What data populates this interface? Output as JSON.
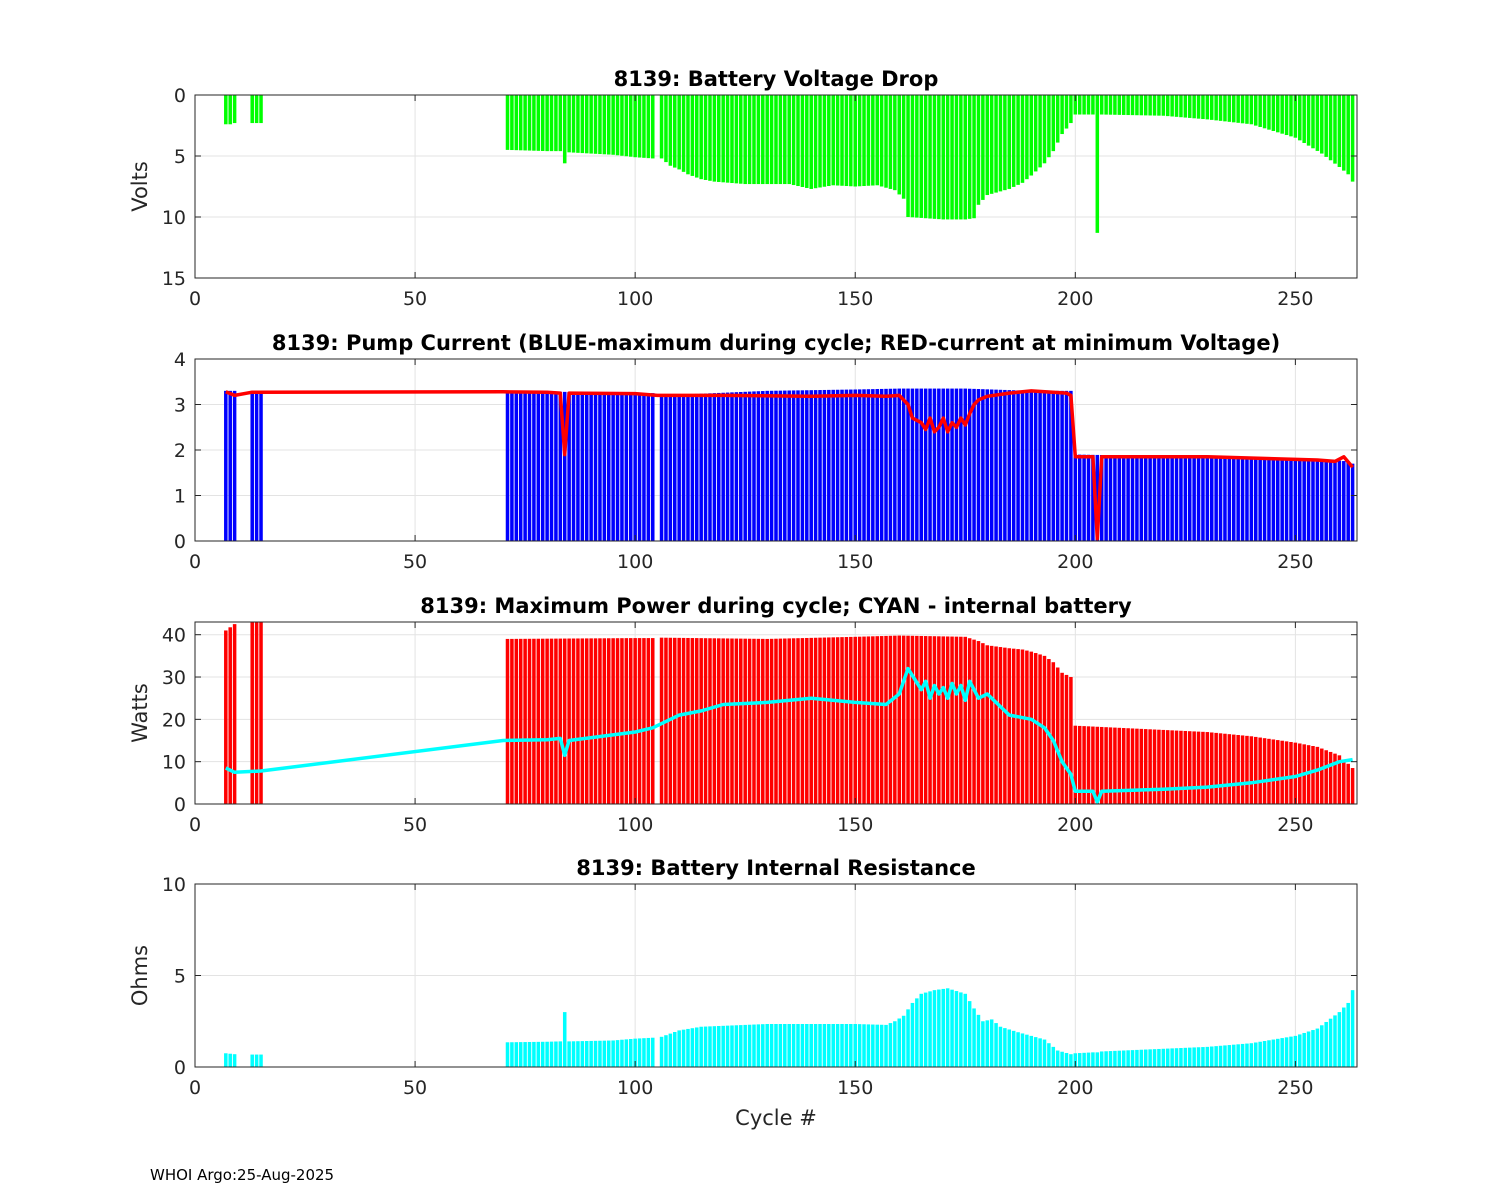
{
  "footer": "WHOI Argo:25-Aug-2025",
  "chart_data": [
    {
      "type": "bar",
      "title": "8139: Battery Voltage Drop",
      "xlabel": "",
      "ylabel": "Volts",
      "xlim": [
        0,
        264
      ],
      "ylim": [
        0,
        15
      ],
      "y_reversed": true,
      "xticks": [
        "0",
        "50",
        "100",
        "150",
        "200",
        "250"
      ],
      "yticks": [
        "0",
        "5",
        "10",
        "15"
      ],
      "grid": true,
      "colors": {
        "bars": "#00ff00"
      },
      "knots": [
        [
          7,
          2.4
        ],
        [
          8,
          2.4
        ],
        [
          9,
          2.3
        ],
        [
          13,
          2.3
        ],
        [
          15,
          2.3
        ],
        [
          71,
          4.5
        ],
        [
          80,
          4.6
        ],
        [
          83,
          4.6
        ],
        [
          84,
          5.6
        ],
        [
          85,
          4.7
        ],
        [
          95,
          4.9
        ],
        [
          100,
          5.1
        ],
        [
          104,
          5.2
        ],
        [
          106,
          5.2
        ],
        [
          108,
          5.8
        ],
        [
          110,
          6.1
        ],
        [
          112,
          6.5
        ],
        [
          115,
          6.9
        ],
        [
          118,
          7.1
        ],
        [
          125,
          7.3
        ],
        [
          135,
          7.3
        ],
        [
          140,
          7.7
        ],
        [
          145,
          7.4
        ],
        [
          150,
          7.5
        ],
        [
          155,
          7.4
        ],
        [
          159,
          7.8
        ],
        [
          161,
          8.5
        ],
        [
          162,
          10.0
        ],
        [
          170,
          10.2
        ],
        [
          175,
          10.2
        ],
        [
          177,
          10.1
        ],
        [
          178,
          9.0
        ],
        [
          180,
          8.2
        ],
        [
          185,
          7.7
        ],
        [
          188,
          7.2
        ],
        [
          190,
          6.6
        ],
        [
          193,
          5.6
        ],
        [
          195,
          4.6
        ],
        [
          197,
          3.2
        ],
        [
          199,
          2.3
        ],
        [
          200,
          1.6
        ],
        [
          204,
          1.6
        ],
        [
          205,
          11.3
        ],
        [
          206,
          1.6
        ],
        [
          220,
          1.7
        ],
        [
          230,
          2.0
        ],
        [
          240,
          2.4
        ],
        [
          250,
          3.5
        ],
        [
          256,
          4.8
        ],
        [
          260,
          5.9
        ],
        [
          262,
          6.5
        ],
        [
          263,
          7.1
        ]
      ],
      "gaps": [
        [
          10,
          12
        ],
        [
          16,
          70
        ],
        [
          105,
          105
        ]
      ]
    },
    {
      "type": "bar+line",
      "title": "8139: Pump Current (BLUE-maximum during cycle; RED-current at minimum Voltage)",
      "xlabel": "",
      "ylabel": "",
      "xlim": [
        0,
        264
      ],
      "ylim": [
        0,
        4
      ],
      "xticks": [
        "0",
        "50",
        "100",
        "150",
        "200",
        "250"
      ],
      "yticks": [
        "0",
        "1",
        "2",
        "3",
        "4"
      ],
      "grid": true,
      "colors": {
        "bars": "#0000ff",
        "line": "#ff0000"
      },
      "bar_knots": [
        [
          7,
          3.3
        ],
        [
          15,
          3.3
        ],
        [
          71,
          3.3
        ],
        [
          100,
          3.25
        ],
        [
          104,
          3.25
        ],
        [
          106,
          3.2
        ],
        [
          130,
          3.3
        ],
        [
          150,
          3.33
        ],
        [
          160,
          3.35
        ],
        [
          175,
          3.35
        ],
        [
          190,
          3.3
        ],
        [
          199,
          3.3
        ],
        [
          200,
          1.9
        ],
        [
          230,
          1.85
        ],
        [
          255,
          1.8
        ],
        [
          262,
          1.75
        ],
        [
          263,
          1.7
        ]
      ],
      "bar_gaps": [
        [
          10,
          12
        ],
        [
          16,
          70
        ],
        [
          105,
          105
        ]
      ],
      "line_knots": [
        [
          7,
          3.28
        ],
        [
          9,
          3.2
        ],
        [
          13,
          3.27
        ],
        [
          70,
          3.28
        ],
        [
          80,
          3.27
        ],
        [
          83,
          3.25
        ],
        [
          84,
          1.9
        ],
        [
          85,
          3.25
        ],
        [
          100,
          3.24
        ],
        [
          105,
          3.2
        ],
        [
          120,
          3.2
        ],
        [
          140,
          3.18
        ],
        [
          150,
          3.2
        ],
        [
          157,
          3.18
        ],
        [
          160,
          3.2
        ],
        [
          162,
          3.0
        ],
        [
          163,
          2.7
        ],
        [
          165,
          2.6
        ],
        [
          166,
          2.45
        ],
        [
          167,
          2.7
        ],
        [
          168,
          2.4
        ],
        [
          169,
          2.5
        ],
        [
          170,
          2.7
        ],
        [
          171,
          2.4
        ],
        [
          172,
          2.6
        ],
        [
          173,
          2.5
        ],
        [
          174,
          2.7
        ],
        [
          175,
          2.55
        ],
        [
          176,
          2.8
        ],
        [
          177,
          3.0
        ],
        [
          178,
          3.1
        ],
        [
          180,
          3.18
        ],
        [
          185,
          3.25
        ],
        [
          190,
          3.3
        ],
        [
          198,
          3.25
        ],
        [
          199,
          3.2
        ],
        [
          200,
          1.85
        ],
        [
          204,
          1.85
        ],
        [
          205,
          0.05
        ],
        [
          206,
          1.85
        ],
        [
          230,
          1.85
        ],
        [
          255,
          1.78
        ],
        [
          259,
          1.75
        ],
        [
          261,
          1.85
        ],
        [
          263,
          1.62
        ]
      ]
    },
    {
      "type": "bar+line",
      "title": "8139: Maximum Power during cycle; CYAN - internal battery",
      "xlabel": "",
      "ylabel": "Watts",
      "xlim": [
        0,
        264
      ],
      "ylim": [
        0,
        43
      ],
      "xticks": [
        "0",
        "50",
        "100",
        "150",
        "200",
        "250"
      ],
      "yticks": [
        "0",
        "10",
        "20",
        "30",
        "40"
      ],
      "grid": true,
      "colors": {
        "bars": "#ff0000",
        "line": "#00ffff"
      },
      "bar_knots": [
        [
          7,
          41
        ],
        [
          9,
          42.5
        ],
        [
          13,
          43
        ],
        [
          15,
          43
        ],
        [
          71,
          39
        ],
        [
          100,
          39.2
        ],
        [
          104,
          39.2
        ],
        [
          106,
          39.3
        ],
        [
          130,
          39
        ],
        [
          150,
          39.5
        ],
        [
          160,
          39.8
        ],
        [
          175,
          39.5
        ],
        [
          178,
          38.5
        ],
        [
          180,
          37.5
        ],
        [
          185,
          36.8
        ],
        [
          188,
          36.5
        ],
        [
          190,
          36
        ],
        [
          193,
          35
        ],
        [
          195,
          33.5
        ],
        [
          197,
          31
        ],
        [
          199,
          30
        ],
        [
          200,
          18.5
        ],
        [
          230,
          17
        ],
        [
          240,
          16
        ],
        [
          250,
          14.5
        ],
        [
          255,
          13.5
        ],
        [
          260,
          11.5
        ],
        [
          263,
          8.5
        ]
      ],
      "bar_gaps": [
        [
          10,
          12
        ],
        [
          16,
          70
        ],
        [
          105,
          105
        ]
      ],
      "line_knots": [
        [
          7,
          8.5
        ],
        [
          9,
          7.5
        ],
        [
          15,
          7.8
        ],
        [
          70,
          15
        ],
        [
          80,
          15.2
        ],
        [
          83,
          15.5
        ],
        [
          84,
          11.5
        ],
        [
          85,
          15
        ],
        [
          100,
          17
        ],
        [
          104,
          18
        ],
        [
          106,
          19
        ],
        [
          110,
          21
        ],
        [
          115,
          22
        ],
        [
          120,
          23.5
        ],
        [
          130,
          24
        ],
        [
          140,
          25
        ],
        [
          150,
          24
        ],
        [
          157,
          23.5
        ],
        [
          160,
          26
        ],
        [
          162,
          32
        ],
        [
          165,
          27
        ],
        [
          166,
          29
        ],
        [
          167,
          25
        ],
        [
          168,
          28
        ],
        [
          169,
          26
        ],
        [
          170,
          27.5
        ],
        [
          171,
          25
        ],
        [
          172,
          28.5
        ],
        [
          173,
          26
        ],
        [
          174,
          28
        ],
        [
          175,
          24.5
        ],
        [
          176,
          29
        ],
        [
          177,
          27
        ],
        [
          178,
          25
        ],
        [
          180,
          26
        ],
        [
          185,
          21
        ],
        [
          190,
          20
        ],
        [
          193,
          18
        ],
        [
          195,
          15
        ],
        [
          197,
          10
        ],
        [
          199,
          7
        ],
        [
          200,
          3
        ],
        [
          204,
          3
        ],
        [
          205,
          0.5
        ],
        [
          206,
          3
        ],
        [
          220,
          3.5
        ],
        [
          230,
          4
        ],
        [
          240,
          5
        ],
        [
          250,
          6.5
        ],
        [
          255,
          8
        ],
        [
          260,
          10
        ],
        [
          263,
          10.5
        ]
      ]
    },
    {
      "type": "bar",
      "title": "8139: Battery Internal Resistance",
      "xlabel": "Cycle #",
      "ylabel": "Ohms",
      "xlim": [
        0,
        264
      ],
      "ylim": [
        0,
        10
      ],
      "xticks": [
        "0",
        "50",
        "100",
        "150",
        "200",
        "250"
      ],
      "yticks": [
        "0",
        "5",
        "10"
      ],
      "grid": true,
      "colors": {
        "bars": "#00ffff"
      },
      "knots": [
        [
          7,
          0.75
        ],
        [
          9,
          0.7
        ],
        [
          13,
          0.68
        ],
        [
          15,
          0.68
        ],
        [
          71,
          1.35
        ],
        [
          80,
          1.38
        ],
        [
          83,
          1.4
        ],
        [
          84,
          3.0
        ],
        [
          85,
          1.4
        ],
        [
          95,
          1.45
        ],
        [
          100,
          1.55
        ],
        [
          104,
          1.6
        ],
        [
          106,
          1.65
        ],
        [
          110,
          2.0
        ],
        [
          115,
          2.2
        ],
        [
          120,
          2.25
        ],
        [
          130,
          2.35
        ],
        [
          140,
          2.35
        ],
        [
          150,
          2.35
        ],
        [
          157,
          2.3
        ],
        [
          159,
          2.5
        ],
        [
          161,
          2.8
        ],
        [
          163,
          3.5
        ],
        [
          165,
          4.0
        ],
        [
          168,
          4.2
        ],
        [
          171,
          4.3
        ],
        [
          175,
          4.0
        ],
        [
          177,
          3.2
        ],
        [
          179,
          2.5
        ],
        [
          181,
          2.6
        ],
        [
          183,
          2.2
        ],
        [
          187,
          1.9
        ],
        [
          190,
          1.7
        ],
        [
          193,
          1.5
        ],
        [
          196,
          0.9
        ],
        [
          199,
          0.7
        ],
        [
          200,
          0.75
        ],
        [
          204,
          0.8
        ],
        [
          205,
          0.8
        ],
        [
          206,
          0.85
        ],
        [
          230,
          1.1
        ],
        [
          240,
          1.3
        ],
        [
          250,
          1.7
        ],
        [
          255,
          2.1
        ],
        [
          260,
          3.0
        ],
        [
          262,
          3.5
        ],
        [
          263,
          4.2
        ]
      ],
      "gaps": [
        [
          10,
          12
        ],
        [
          16,
          70
        ],
        [
          105,
          105
        ]
      ]
    }
  ]
}
